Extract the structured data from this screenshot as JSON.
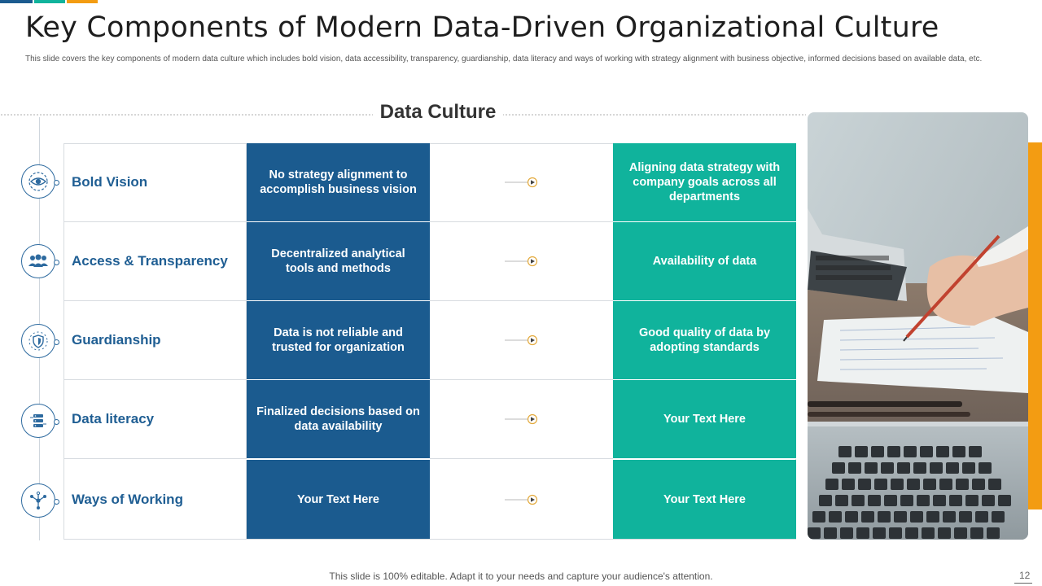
{
  "header": {
    "title": "Key Components of Modern Data-Driven Organizational Culture",
    "subtitle": "This slide covers the key components of modern data culture which includes bold vision, data accessibility, transparency, guardianship, data literacy and ways of working with strategy alignment with business objective, informed decisions based on available data, etc."
  },
  "section_title": "Data Culture",
  "rows": [
    {
      "icon": "eye-icon",
      "label": "Bold Vision",
      "from": "No strategy alignment to accomplish  business vision",
      "to": "Aligning  data strategy with company goals across all departments"
    },
    {
      "icon": "people-icon",
      "label": "Access & Transparency",
      "from": "Decentralized analytical tools and methods",
      "to": "Availability  of data"
    },
    {
      "icon": "shield-icon",
      "label": "Guardianship",
      "from": "Data is not reliable and trusted for organization",
      "to": "Good quality of data by adopting standards"
    },
    {
      "icon": "database-icon",
      "label": "Data literacy",
      "from": "Finalized decisions based on data availability",
      "to": "Your Text Here"
    },
    {
      "icon": "workflow-icon",
      "label": "Ways of Working",
      "from": "Your Text Here",
      "to": "Your Text Here"
    }
  ],
  "footer": {
    "text": "This slide is 100% editable. Adapt it to your needs and capture your audience's attention.",
    "page_number": "12"
  },
  "colors": {
    "dark_blue": "#1b5b8f",
    "teal": "#10b39c",
    "orange": "#f39c12",
    "label_blue": "#1f5e93"
  }
}
